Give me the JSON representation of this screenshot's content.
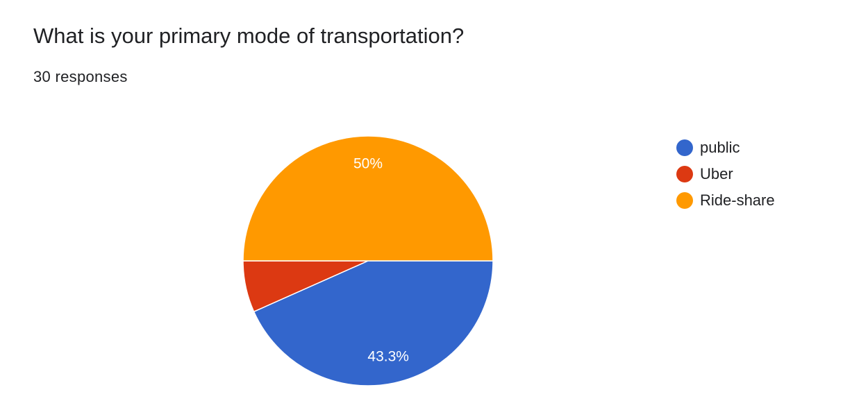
{
  "question": {
    "title": "What is your primary mode of transportation?",
    "responses": "30 responses"
  },
  "chart_data": {
    "type": "pie",
    "total_responses": 30,
    "slices": [
      {
        "label": "public",
        "value": 13,
        "percent": 43.3,
        "percent_label": "43.3%",
        "color": "#3366cc"
      },
      {
        "label": "Uber",
        "value": 2,
        "percent": 6.7,
        "percent_label": "",
        "color": "#dc3912"
      },
      {
        "label": "Ride-share",
        "value": 15,
        "percent": 50,
        "percent_label": "50%",
        "color": "#ff9900"
      }
    ],
    "legend_position": "right"
  }
}
